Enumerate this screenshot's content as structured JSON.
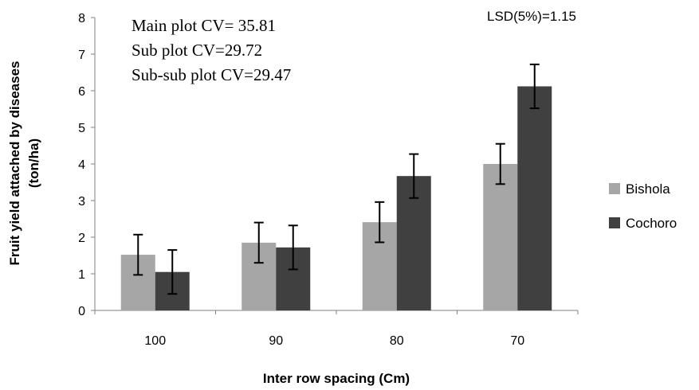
{
  "chart_data": {
    "type": "bar",
    "categories": [
      "100",
      "90",
      "80",
      "70"
    ],
    "series": [
      {
        "name": "Bishola",
        "color": "#a6a6a6",
        "values": [
          1.52,
          1.85,
          2.41,
          4.0
        ],
        "error": [
          0.55,
          0.55,
          0.55,
          0.55
        ]
      },
      {
        "name": "Cochoro",
        "color": "#404040",
        "values": [
          1.05,
          1.72,
          3.67,
          6.12
        ],
        "error": [
          0.6,
          0.6,
          0.6,
          0.6
        ]
      }
    ],
    "xlabel": "Inter row spacing  (Cm)",
    "ylabel_line1": "Fruit yield attached by diseases",
    "ylabel_line2": "(ton/ha)",
    "ylim": [
      0,
      8
    ],
    "yticks": [
      "0",
      "1",
      "2",
      "3",
      "4",
      "5",
      "6",
      "7",
      "8"
    ],
    "grid": false,
    "legend_position": "right",
    "annotations": {
      "main_plot_cv": "Main plot CV= 35.81",
      "sub_plot_cv": "Sub plot CV=29.72",
      "sub_sub_plot_cv": "Sub-sub plot CV=29.47",
      "lsd": "LSD(5%)=1.15"
    }
  }
}
